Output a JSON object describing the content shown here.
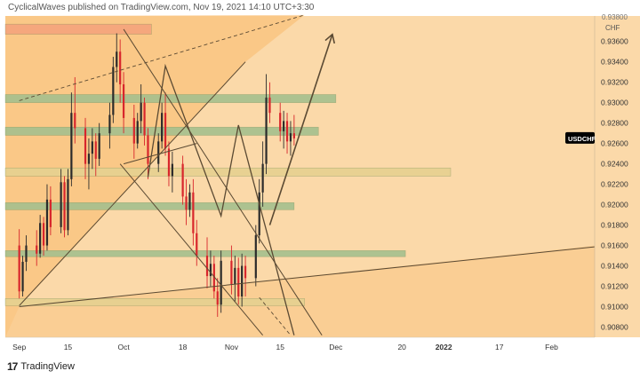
{
  "header": {
    "text": "CyclicalWaves published on TradingView.com, Nov 19, 2021 14:10 UTC+3:30"
  },
  "footer": {
    "brand": "TradingView"
  },
  "colors": {
    "background": "#fbd9a9",
    "pane_fill": "#f9ba6c",
    "green_zone": "#a5c08e",
    "salmon_zone": "#f5a47c",
    "yellow_zone": "#e6d190",
    "candle_up": "#2b2b2b",
    "candle_down": "#d8262c",
    "line": "#5b4a33",
    "symbol_badge": "#000000"
  },
  "chart_data": {
    "type": "candlestick",
    "symbol": "USDCHF",
    "currency": "CHF",
    "y_ticks": [
      "0.93600",
      "0.93400",
      "0.93200",
      "0.93000",
      "0.92800",
      "0.92600",
      "0.92400",
      "0.92200",
      "0.92000",
      "0.91800",
      "0.91600",
      "0.91400",
      "0.91200",
      "0.91000",
      "0.90800"
    ],
    "y_top_label": "0.93800",
    "ylim": [
      0.907,
      0.9385
    ],
    "x_ticks": [
      "Sep",
      "15",
      "Oct",
      "18",
      "Nov",
      "15",
      "Dec",
      "20",
      "2022",
      "17",
      "Feb"
    ],
    "zones": [
      {
        "kind": "salmon",
        "from": "Sep 1",
        "to": "Oct 9",
        "low": 0.9367,
        "high": 0.9377
      },
      {
        "kind": "green",
        "from": "Sep 1",
        "to": "Dec 1",
        "low": 0.93,
        "high": 0.9308
      },
      {
        "kind": "green",
        "from": "Sep 1",
        "to": "Nov 26",
        "low": 0.9268,
        "high": 0.9276
      },
      {
        "kind": "yellow",
        "from": "Sep 1",
        "to": "Jan 3",
        "low": 0.9228,
        "high": 0.9236
      },
      {
        "kind": "green",
        "from": "Sep 1",
        "to": "Nov 19",
        "low": 0.9195,
        "high": 0.9202
      },
      {
        "kind": "green",
        "from": "Sep 1",
        "to": "Dec 21",
        "low": 0.9149,
        "high": 0.9155
      },
      {
        "kind": "yellow",
        "from": "Sep 1",
        "to": "Nov 22",
        "low": 0.9101,
        "high": 0.9108
      }
    ],
    "trendlines": [
      {
        "style": "solid",
        "p1": [
          "Sep 1",
          0.9101
        ],
        "p2": [
          "Nov 5",
          0.934
        ]
      },
      {
        "style": "dashed",
        "p1": [
          "Sep 1",
          0.9302
        ],
        "p2": [
          "Nov 22",
          0.9386
        ]
      },
      {
        "style": "solid",
        "p1": [
          "Sep 1",
          0.91
        ],
        "p2": [
          "Feb 17",
          0.916
        ]
      },
      {
        "style": "solid",
        "p1": [
          "Oct 1",
          0.9372
        ],
        "p2": [
          "Nov 27",
          0.9072
        ]
      },
      {
        "style": "solid",
        "p1": [
          "Sep 30",
          0.924
        ],
        "p2": [
          "Nov 10",
          0.9072
        ]
      },
      {
        "style": "dashed",
        "p1": [
          "Nov 9",
          0.9109
        ],
        "p2": [
          "Nov 18",
          0.9072
        ]
      },
      {
        "style": "solid",
        "p1": [
          "Oct 1",
          0.924
        ],
        "p2": [
          "Oct 22",
          0.926
        ]
      },
      {
        "style": "projection",
        "points": [
          [
            "Oct 8",
            0.9227
          ],
          [
            "Oct 13",
            0.9336
          ],
          [
            "Oct 29",
            0.9189
          ],
          [
            "Nov 3",
            0.9278
          ],
          [
            "Nov 19",
            0.9072
          ]
        ]
      },
      {
        "style": "arrow",
        "p1": [
          "Nov 12",
          0.918
        ],
        "p2": [
          "Nov 30",
          0.9367
        ]
      }
    ],
    "ohlc": [
      [
        "Sep 1",
        0.916,
        0.9176,
        0.9108,
        0.9115
      ],
      [
        "Sep 2",
        0.9115,
        0.915,
        0.911,
        0.9144
      ],
      [
        "Sep 3",
        0.9144,
        0.917,
        0.9135,
        0.916
      ],
      [
        "Sep 6",
        0.916,
        0.9175,
        0.914,
        0.9152
      ],
      [
        "Sep 7",
        0.9152,
        0.919,
        0.9148,
        0.9182
      ],
      [
        "Sep 8",
        0.9182,
        0.9188,
        0.915,
        0.916
      ],
      [
        "Sep 9",
        0.916,
        0.922,
        0.9155,
        0.9205
      ],
      [
        "Sep 10",
        0.9205,
        0.9218,
        0.917,
        0.9178
      ],
      [
        "Sep 13",
        0.9178,
        0.9235,
        0.9172,
        0.9222
      ],
      [
        "Sep 14",
        0.9222,
        0.9228,
        0.9168,
        0.9175
      ],
      [
        "Sep 15",
        0.9175,
        0.9235,
        0.917,
        0.9225
      ],
      [
        "Sep 16",
        0.9225,
        0.931,
        0.9218,
        0.929
      ],
      [
        "Sep 17",
        0.929,
        0.9325,
        0.926,
        0.9275
      ],
      [
        "Sep 20",
        0.9275,
        0.9285,
        0.9225,
        0.924
      ],
      [
        "Sep 21",
        0.924,
        0.9265,
        0.9215,
        0.925
      ],
      [
        "Sep 22",
        0.925,
        0.9275,
        0.9235,
        0.9262
      ],
      [
        "Sep 23",
        0.9262,
        0.927,
        0.9228,
        0.9245
      ],
      [
        "Sep 24",
        0.9245,
        0.928,
        0.9238,
        0.927
      ],
      [
        "Sep 27",
        0.927,
        0.93,
        0.9255,
        0.9288
      ],
      [
        "Sep 28",
        0.9288,
        0.9345,
        0.928,
        0.9335
      ],
      [
        "Sep 29",
        0.9335,
        0.9368,
        0.932,
        0.935
      ],
      [
        "Sep 30",
        0.935,
        0.9362,
        0.93,
        0.9318
      ],
      [
        "Oct 1",
        0.9318,
        0.933,
        0.927,
        0.9285
      ],
      [
        "Oct 4",
        0.9285,
        0.9298,
        0.9245,
        0.926
      ],
      [
        "Oct 5",
        0.926,
        0.929,
        0.9255,
        0.9282
      ],
      [
        "Oct 6",
        0.9282,
        0.9318,
        0.927,
        0.93
      ],
      [
        "Oct 7",
        0.93,
        0.9305,
        0.9258,
        0.9268
      ],
      [
        "Oct 8",
        0.9268,
        0.9275,
        0.9225,
        0.924
      ],
      [
        "Oct 11",
        0.924,
        0.927,
        0.9232,
        0.9262
      ],
      [
        "Oct 12",
        0.9262,
        0.93,
        0.9255,
        0.929
      ],
      [
        "Oct 13",
        0.929,
        0.931,
        0.9248,
        0.9255
      ],
      [
        "Oct 14",
        0.9255,
        0.9262,
        0.9218,
        0.9228
      ],
      [
        "Oct 15",
        0.9228,
        0.9252,
        0.9212,
        0.924
      ],
      [
        "Oct 18",
        0.924,
        0.9248,
        0.92,
        0.9208
      ],
      [
        "Oct 19",
        0.9208,
        0.9225,
        0.918,
        0.9195
      ],
      [
        "Oct 20",
        0.9195,
        0.922,
        0.9188,
        0.9212
      ],
      [
        "Oct 21",
        0.9212,
        0.9225,
        0.916,
        0.9172
      ],
      [
        "Oct 22",
        0.9172,
        0.9185,
        0.914,
        0.915
      ],
      [
        "Oct 25",
        0.915,
        0.9168,
        0.9118,
        0.913
      ],
      [
        "Oct 26",
        0.913,
        0.9155,
        0.912,
        0.9142
      ],
      [
        "Oct 27",
        0.9142,
        0.915,
        0.9108,
        0.9115
      ],
      [
        "Oct 28",
        0.9115,
        0.9128,
        0.909,
        0.9102
      ],
      [
        "Oct 29",
        0.9102,
        0.9155,
        0.9094,
        0.9145
      ],
      [
        "Nov 1",
        0.9145,
        0.916,
        0.9112,
        0.9122
      ],
      [
        "Nov 2",
        0.9122,
        0.915,
        0.9105,
        0.9138
      ],
      [
        "Nov 3",
        0.9138,
        0.9148,
        0.9102,
        0.911
      ],
      [
        "Nov 4",
        0.911,
        0.9152,
        0.91,
        0.914
      ],
      [
        "Nov 5",
        0.914,
        0.915,
        0.911,
        0.9128
      ],
      [
        "Nov 8",
        0.9128,
        0.918,
        0.912,
        0.917
      ],
      [
        "Nov 9",
        0.917,
        0.9225,
        0.9162,
        0.9212
      ],
      [
        "Nov 10",
        0.9212,
        0.9262,
        0.9198,
        0.924
      ],
      [
        "Nov 11",
        0.924,
        0.9328,
        0.923,
        0.9305
      ],
      [
        "Nov 12",
        0.9305,
        0.932,
        0.928,
        0.929
      ],
      [
        "Nov 15",
        0.929,
        0.93,
        0.9262,
        0.9272
      ],
      [
        "Nov 16",
        0.9272,
        0.9292,
        0.9255,
        0.9282
      ],
      [
        "Nov 17",
        0.9282,
        0.929,
        0.925,
        0.9262
      ],
      [
        "Nov 18",
        0.9262,
        0.9282,
        0.9248,
        0.927
      ],
      [
        "Nov 19",
        0.927,
        0.9288,
        0.9258,
        0.9265
      ]
    ]
  }
}
